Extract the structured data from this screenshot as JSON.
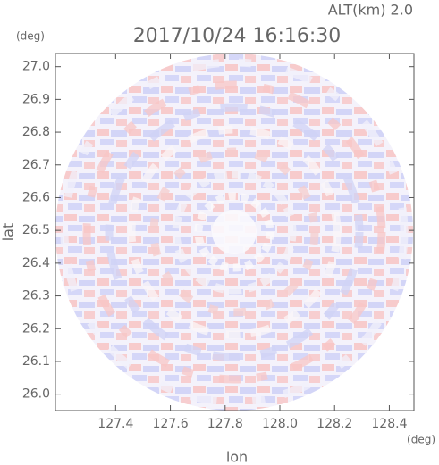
{
  "chart_data": {
    "type": "map",
    "title": "2017/10/24 16:16:30",
    "subtitle": "ALT(km) 2.0",
    "x_label": "lon",
    "y_label": "lat",
    "x_unit": "(deg)",
    "y_unit": "(deg)",
    "xlim": [
      127.18,
      128.49
    ],
    "ylim": [
      25.95,
      27.04
    ],
    "xticks": [
      127.4,
      127.6,
      127.8,
      {
        "value": 128.0,
        "label": "128.0"
      },
      128.2,
      128.4
    ],
    "yticks": [
      {
        "value": 26.0,
        "label": "26.0"
      },
      26.1,
      26.2,
      26.3,
      26.4,
      26.5,
      26.6,
      26.7,
      26.8,
      26.9,
      {
        "value": 27.0,
        "label": "27.0"
      }
    ]
  }
}
